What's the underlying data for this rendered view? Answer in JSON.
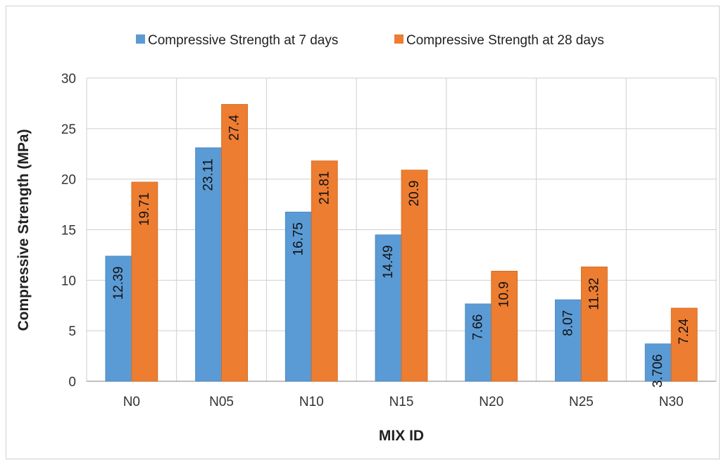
{
  "chart_data": {
    "type": "bar",
    "categories": [
      "N0",
      "N05",
      "N10",
      "N15",
      "N20",
      "N25",
      "N30"
    ],
    "series": [
      {
        "name": "Compressive Strength at  7 days",
        "color": "#5b9bd5",
        "values": [
          12.39,
          23.11,
          16.75,
          14.49,
          7.66,
          8.07,
          3.706
        ],
        "labels": [
          "12.39",
          "23.11",
          "16.75",
          "14.49",
          "7.66",
          "8.07",
          "3.706"
        ]
      },
      {
        "name": "Compressive Strength at 28 days",
        "color": "#ed7d31",
        "values": [
          19.71,
          27.4,
          21.81,
          20.9,
          10.9,
          11.32,
          7.24
        ],
        "labels": [
          "19.71",
          "27.4",
          "21.81",
          "20.9",
          "10.9",
          "11.32",
          "7.24"
        ]
      }
    ],
    "title": "",
    "xlabel": "MIX ID",
    "ylabel": "Compressive Strength (MPa)",
    "ylim": [
      0,
      30
    ],
    "yticks": [
      0,
      5,
      10,
      15,
      20,
      25,
      30
    ],
    "grid": true,
    "legend_position": "top"
  }
}
